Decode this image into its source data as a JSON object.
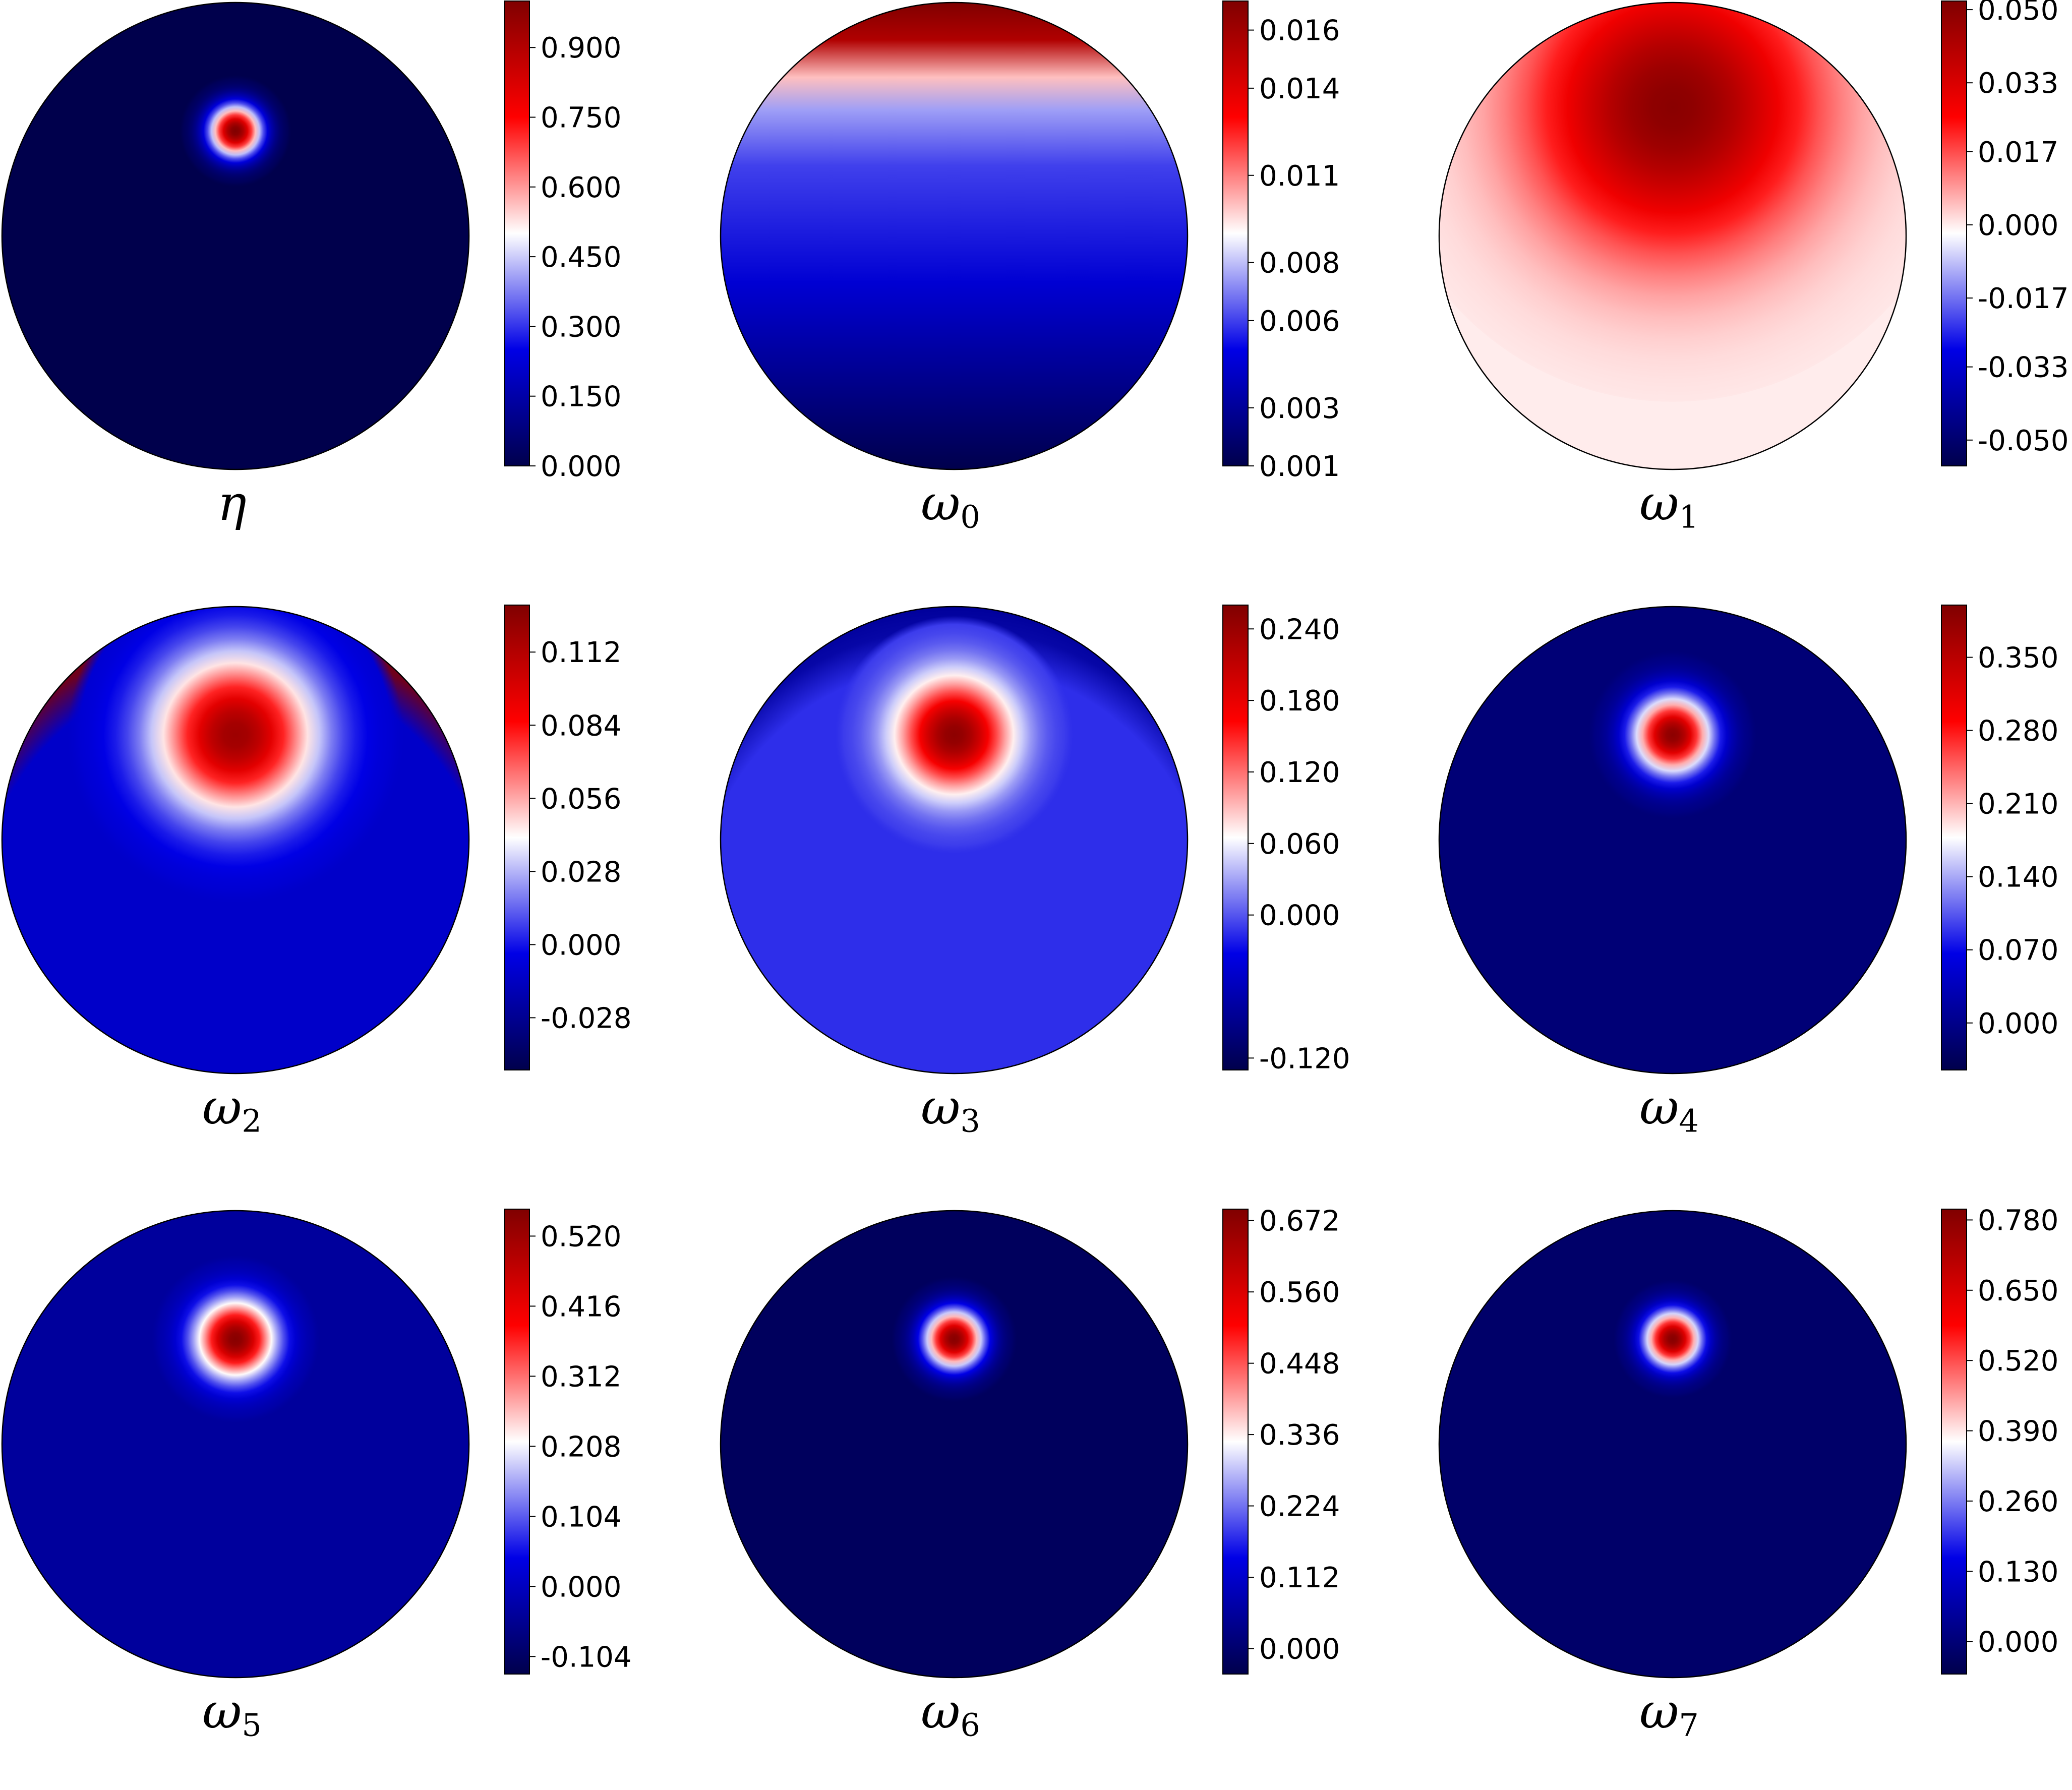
{
  "colormap": {
    "name": "seismic",
    "stops": [
      "#00004c",
      "#0000e6",
      "#ffffff",
      "#ff0000",
      "#800000"
    ]
  },
  "chart_data": [
    {
      "type": "heatmap",
      "label": "η",
      "label_main": "η",
      "label_sub": "",
      "cbar_ticks": [
        "0.000",
        "0.150",
        "0.300",
        "0.450",
        "0.600",
        "0.750",
        "0.900"
      ],
      "cbar_range": [
        0.0,
        1.0
      ],
      "field": {
        "kind": "spot",
        "cx": 0.0,
        "cy": 0.45,
        "sigma": 0.08,
        "background": 0.0,
        "peak": 1.0
      }
    },
    {
      "type": "heatmap",
      "label": "ω0",
      "label_main": "ω",
      "label_sub": "0",
      "cbar_ticks": [
        "0.001",
        "0.003",
        "0.006",
        "0.008",
        "0.011",
        "0.014",
        "0.016"
      ],
      "cbar_range": [
        0.001,
        0.017
      ],
      "field": {
        "kind": "top_gradient"
      }
    },
    {
      "type": "heatmap",
      "label": "ω1",
      "label_main": "ω",
      "label_sub": "1",
      "cbar_ticks": [
        "-0.050",
        "-0.033",
        "-0.017",
        "0.000",
        "0.017",
        "0.033",
        "0.050"
      ],
      "cbar_range": [
        -0.056,
        0.052
      ],
      "field": {
        "kind": "broad",
        "cx": 0.0,
        "cy": 0.55,
        "sigma": 0.42,
        "background": 0.0,
        "peak": 0.05,
        "rim": -0.055
      }
    },
    {
      "type": "heatmap",
      "label": "ω2",
      "label_main": "ω",
      "label_sub": "2",
      "cbar_ticks": [
        "-0.028",
        "0.000",
        "0.028",
        "0.056",
        "0.084",
        "0.112"
      ],
      "cbar_range": [
        -0.048,
        0.13
      ],
      "field": {
        "kind": "spot",
        "cx": 0.0,
        "cy": 0.45,
        "sigma": 0.24,
        "background": -0.012,
        "peak": 0.12,
        "rim_top": 0.13
      }
    },
    {
      "type": "heatmap",
      "label": "ω3",
      "label_main": "ω",
      "label_sub": "3",
      "cbar_ticks": [
        "-0.120",
        "0.000",
        "0.060",
        "0.120",
        "0.180",
        "0.240"
      ],
      "cbar_range": [
        -0.13,
        0.26
      ],
      "field": {
        "kind": "spot",
        "cx": 0.0,
        "cy": 0.45,
        "sigma": 0.17,
        "background": -0.015,
        "peak": 0.25,
        "rim": -0.08
      }
    },
    {
      "type": "heatmap",
      "label": "ω4",
      "label_main": "ω",
      "label_sub": "4",
      "cbar_ticks": [
        "0.000",
        "0.070",
        "0.140",
        "0.210",
        "0.280",
        "0.350"
      ],
      "cbar_range": [
        -0.045,
        0.4
      ],
      "field": {
        "kind": "spot",
        "cx": 0.0,
        "cy": 0.45,
        "sigma": 0.12,
        "background": -0.015,
        "peak": 0.39
      }
    },
    {
      "type": "heatmap",
      "label": "ω5",
      "label_main": "ω",
      "label_sub": "5",
      "cbar_ticks": [
        "-0.104",
        "0.000",
        "0.104",
        "0.208",
        "0.312",
        "0.416",
        "0.520"
      ],
      "cbar_range": [
        -0.13,
        0.56
      ],
      "field": {
        "kind": "spot",
        "cx": 0.0,
        "cy": 0.45,
        "sigma": 0.12,
        "background": -0.04,
        "peak": 0.55
      }
    },
    {
      "type": "heatmap",
      "label": "ω6",
      "label_main": "ω",
      "label_sub": "6",
      "cbar_ticks": [
        "0.000",
        "0.112",
        "0.224",
        "0.336",
        "0.448",
        "0.560",
        "0.672"
      ],
      "cbar_range": [
        -0.04,
        0.69
      ],
      "field": {
        "kind": "spot",
        "cx": 0.0,
        "cy": 0.45,
        "sigma": 0.09,
        "background": -0.02,
        "peak": 0.68
      }
    },
    {
      "type": "heatmap",
      "label": "ω7",
      "label_main": "ω",
      "label_sub": "7",
      "cbar_ticks": [
        "0.000",
        "0.130",
        "0.260",
        "0.390",
        "0.520",
        "0.650",
        "0.780"
      ],
      "cbar_range": [
        -0.06,
        0.8
      ],
      "field": {
        "kind": "spot",
        "cx": 0.0,
        "cy": 0.45,
        "sigma": 0.085,
        "background": -0.02,
        "peak": 0.79
      }
    }
  ]
}
